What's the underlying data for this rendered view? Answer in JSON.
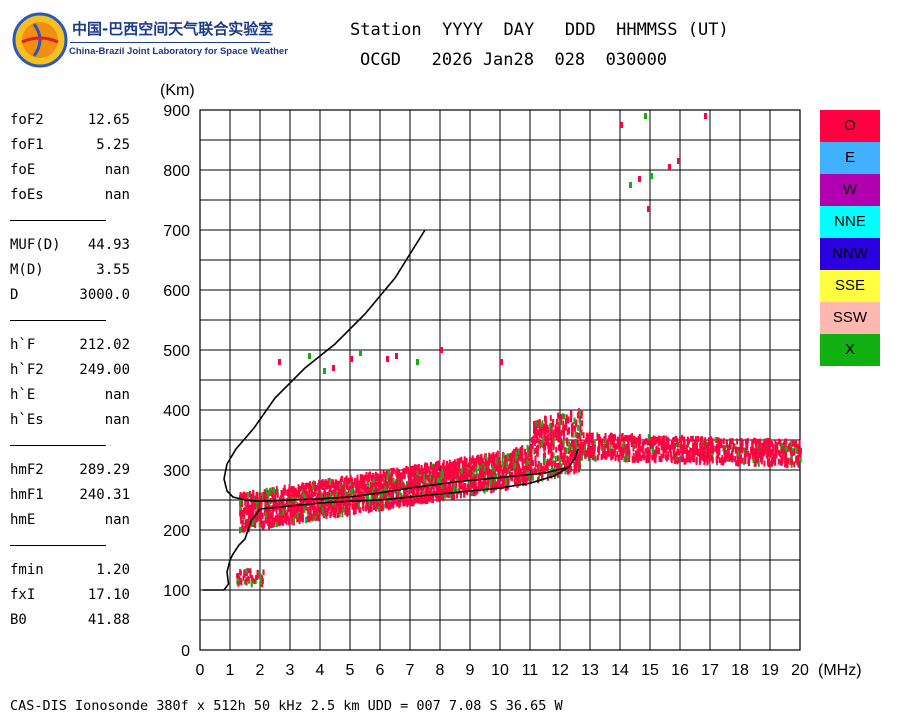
{
  "logo": {
    "title_cn": "中国-巴西空间天气联合实验室",
    "title_en": "China-Brazil Joint Laboratory for Space Weather"
  },
  "header": {
    "line1": "Station  YYYY  DAY   DDD  HHMMSS (UT)",
    "line2": "OCGD   2026 Jan28  028  030000"
  },
  "params": [
    {
      "name": "foF2",
      "value": "12.65"
    },
    {
      "name": "foF1",
      "value": "5.25"
    },
    {
      "name": "foE",
      "value": "nan"
    },
    {
      "name": "foEs",
      "value": "nan"
    },
    {
      "name": "MUF(D)",
      "value": "44.93"
    },
    {
      "name": "M(D)",
      "value": "3.55"
    },
    {
      "name": "D",
      "value": "3000.0"
    },
    {
      "name": "h`F",
      "value": "212.02"
    },
    {
      "name": "h`F2",
      "value": "249.00"
    },
    {
      "name": "h`E",
      "value": "nan"
    },
    {
      "name": "h`Es",
      "value": "nan"
    },
    {
      "name": "hmF2",
      "value": "289.29"
    },
    {
      "name": "hmF1",
      "value": "240.31"
    },
    {
      "name": "hmE",
      "value": "nan"
    },
    {
      "name": "fmin",
      "value": "1.20"
    },
    {
      "name": "fxI",
      "value": "17.10"
    },
    {
      "name": "B0",
      "value": "41.88"
    }
  ],
  "footer": "CAS-DIS Ionosonde 380f x 512h 50 kHz 2.5 km UDD = 007 7.08 S 36.65 W",
  "legend": [
    {
      "label": "O",
      "color": "#ff0040"
    },
    {
      "label": "E",
      "color": "#40b0ff"
    },
    {
      "label": "W",
      "color": "#b000b0"
    },
    {
      "label": "NNE",
      "color": "#00ffff"
    },
    {
      "label": "NNW",
      "color": "#2a00e0"
    },
    {
      "label": "SSE",
      "color": "#ffff40"
    },
    {
      "label": "SSW",
      "color": "#ffb8b0"
    },
    {
      "label": "X",
      "color": "#10b010"
    }
  ],
  "chart_data": {
    "type": "scatter",
    "xlabel": "(MHz)",
    "ylabel": "(Km)",
    "xlim": [
      0,
      20
    ],
    "ylim": [
      0,
      900
    ],
    "xticks": [
      0,
      1,
      2,
      3,
      4,
      5,
      6,
      7,
      8,
      9,
      10,
      11,
      12,
      13,
      14,
      15,
      16,
      17,
      18,
      19,
      20
    ],
    "yticks": [
      0,
      100,
      200,
      300,
      400,
      500,
      600,
      700,
      800,
      900
    ],
    "grid": true,
    "profile_curve": {
      "x": [
        0.1,
        0.4,
        0.8,
        0.95,
        0.9,
        1.0,
        1.1,
        1.3,
        1.5,
        1.6,
        1.7,
        2.0,
        3.0,
        4.0,
        5.0,
        6.0,
        7.0,
        8.0,
        9.0,
        10.0,
        11.0,
        11.8,
        12.3,
        12.5,
        12.6,
        12.5,
        12.3,
        11.5,
        10.5,
        9.5,
        8.5,
        7.0,
        6.0,
        5.0,
        4.0,
        3.0,
        2.0,
        1.5,
        1.1,
        0.9,
        0.8,
        0.9,
        1.2,
        1.8,
        2.5,
        3.5,
        4.5,
        5.5,
        6.5,
        7.5
      ],
      "y": [
        100,
        100,
        100,
        110,
        130,
        150,
        160,
        175,
        185,
        200,
        215,
        235,
        240,
        245,
        248,
        250,
        255,
        260,
        265,
        270,
        278,
        290,
        305,
        320,
        335,
        320,
        305,
        295,
        290,
        285,
        280,
        270,
        262,
        255,
        252,
        250,
        248,
        250,
        255,
        265,
        285,
        310,
        335,
        370,
        420,
        470,
        510,
        560,
        620,
        700
      ]
    },
    "trace_series": [
      {
        "name": "O",
        "color": "#ff0040"
      },
      {
        "name": "X",
        "color": "#10b010"
      }
    ]
  }
}
